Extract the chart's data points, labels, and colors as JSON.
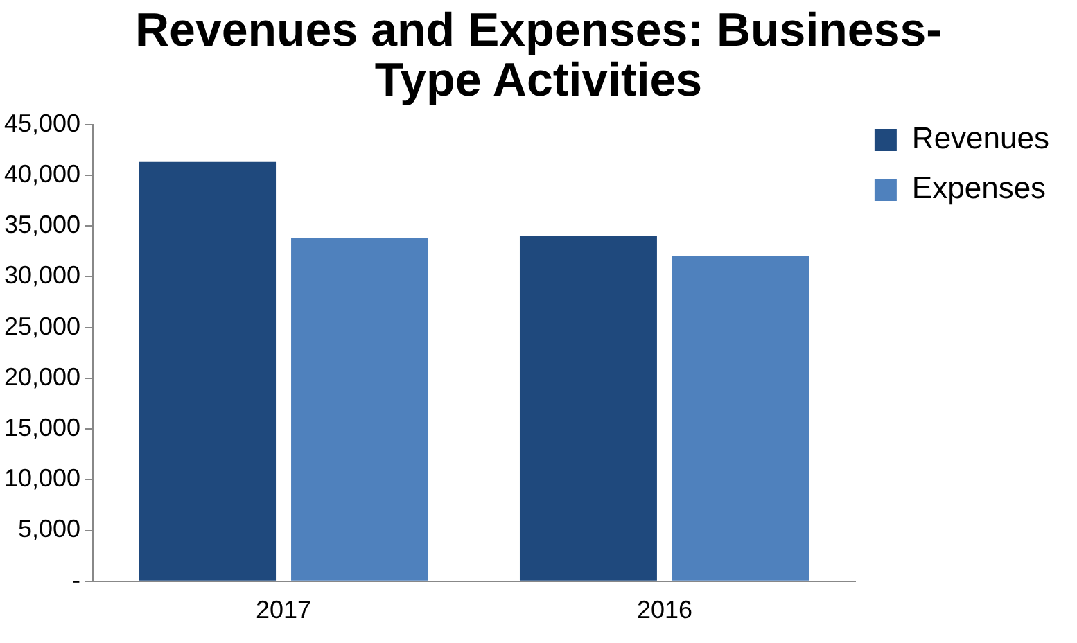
{
  "chart_data": {
    "type": "bar",
    "title": "Revenues and Expenses:  Business-Type Activities",
    "categories": [
      "2017",
      "2016"
    ],
    "series": [
      {
        "name": "Revenues",
        "color": "#1f497d",
        "values": [
          41300,
          34000
        ]
      },
      {
        "name": "Expenses",
        "color": "#4f81bd",
        "values": [
          33800,
          32000
        ]
      }
    ],
    "ylim": [
      0,
      45000
    ],
    "yticks": [
      {
        "value": 0,
        "label": "-"
      },
      {
        "value": 5000,
        "label": "5,000"
      },
      {
        "value": 10000,
        "label": "10,000"
      },
      {
        "value": 15000,
        "label": "15,000"
      },
      {
        "value": 20000,
        "label": "20,000"
      },
      {
        "value": 25000,
        "label": "25,000"
      },
      {
        "value": 30000,
        "label": "30,000"
      },
      {
        "value": 35000,
        "label": "35,000"
      },
      {
        "value": 40000,
        "label": "40,000"
      },
      {
        "value": 45000,
        "label": "45,000"
      }
    ],
    "grid": false,
    "legend": "top right"
  }
}
